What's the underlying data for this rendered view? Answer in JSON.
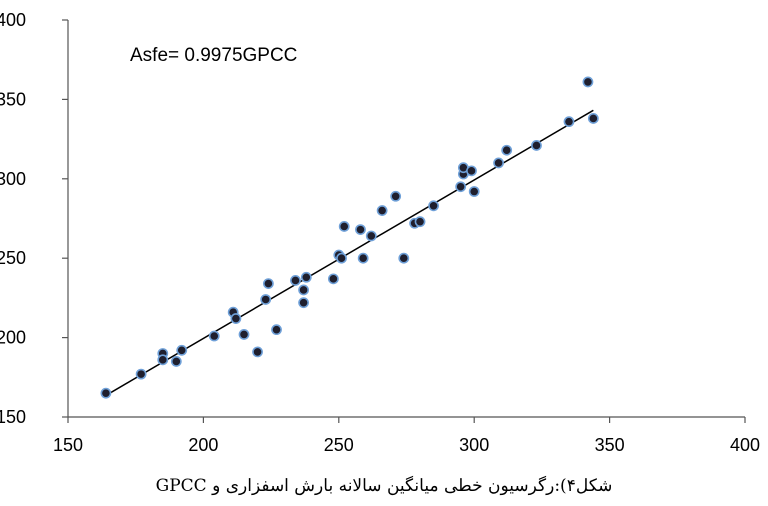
{
  "chart_data": {
    "type": "scatter",
    "title": "",
    "xlabel": "",
    "ylabel": "",
    "xlim": [
      150,
      400
    ],
    "ylim": [
      150,
      400
    ],
    "xticks": [
      150,
      200,
      250,
      300,
      350,
      400
    ],
    "yticks": [
      150,
      200,
      250,
      300,
      350,
      400
    ],
    "grid": false,
    "annotation": "Asfe= 0.9975GPCC",
    "point_color": "#1f1f2e",
    "point_edge_color": "#6fa0d8",
    "line_color": "#000000",
    "trendline": {
      "slope": 0.9975,
      "intercept": 0,
      "x_range": [
        164,
        344
      ]
    },
    "series": [
      {
        "x": [
          164,
          177,
          185,
          185,
          190,
          192,
          204,
          211,
          212,
          215,
          220,
          223,
          224,
          227,
          234,
          237,
          237,
          238,
          248,
          250,
          251,
          252,
          258,
          259,
          262,
          266,
          271,
          274,
          278,
          280,
          285,
          295,
          296,
          296,
          299,
          300,
          309,
          312,
          323,
          335,
          342,
          344
        ],
        "y": [
          165,
          177,
          190,
          186,
          185,
          192,
          201,
          216,
          212,
          202,
          191,
          224,
          234,
          205,
          236,
          230,
          222,
          238,
          237,
          252,
          250,
          270,
          268,
          250,
          264,
          280,
          289,
          250,
          272,
          273,
          283,
          295,
          303,
          307,
          305,
          292,
          310,
          318,
          321,
          336,
          361,
          338
        ]
      }
    ]
  },
  "caption": "شکل۴):رگرسیون خطی میانگین سالانه بارش اسفزاری و GPCC"
}
